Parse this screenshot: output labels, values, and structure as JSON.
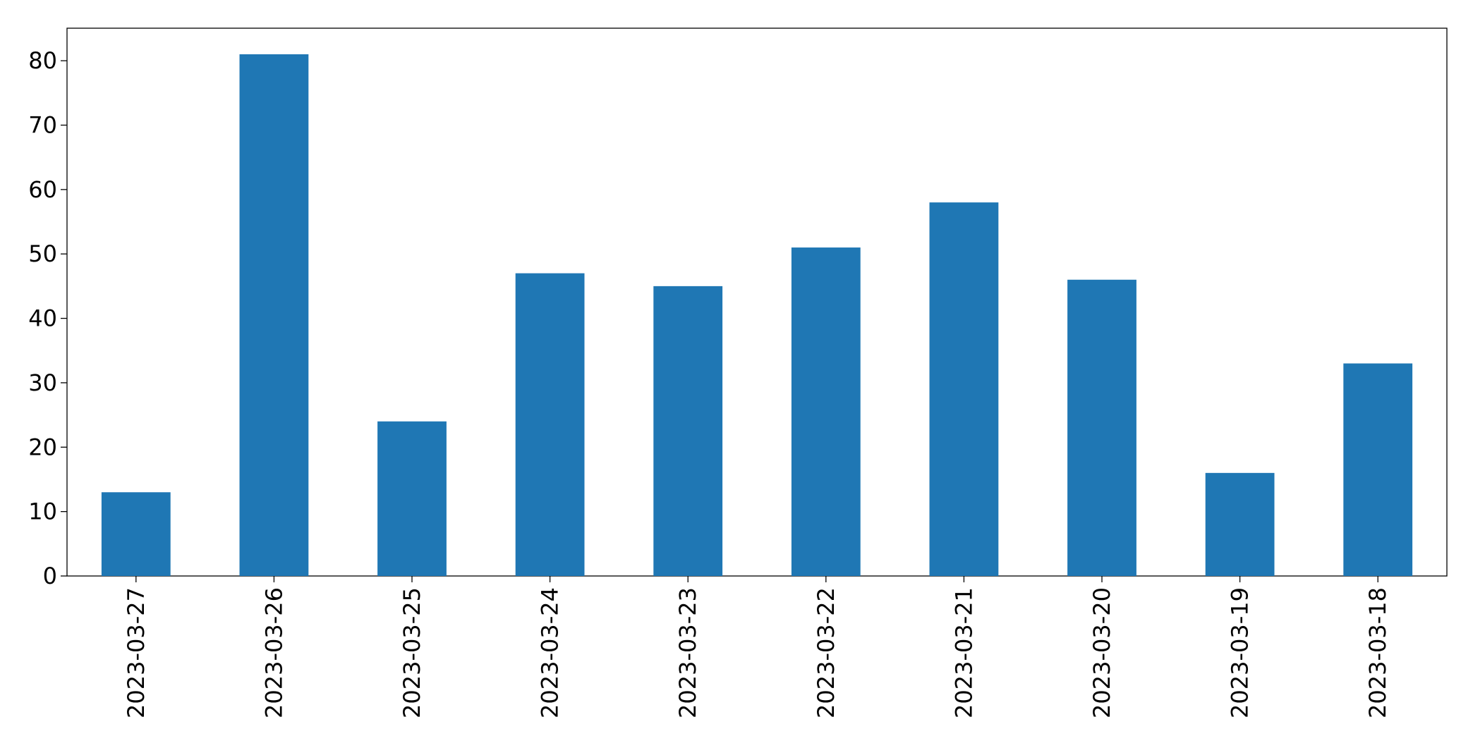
{
  "chart_data": {
    "type": "bar",
    "categories": [
      "2023-03-27",
      "2023-03-26",
      "2023-03-25",
      "2023-03-24",
      "2023-03-23",
      "2023-03-22",
      "2023-03-21",
      "2023-03-20",
      "2023-03-19",
      "2023-03-18"
    ],
    "values": [
      13,
      81,
      24,
      47,
      45,
      51,
      58,
      46,
      16,
      33
    ],
    "color": "#1f77b4",
    "ylim": [
      0,
      85.05
    ],
    "yticks": [
      0,
      10,
      20,
      30,
      40,
      50,
      60,
      70,
      80
    ],
    "grid": false
  }
}
